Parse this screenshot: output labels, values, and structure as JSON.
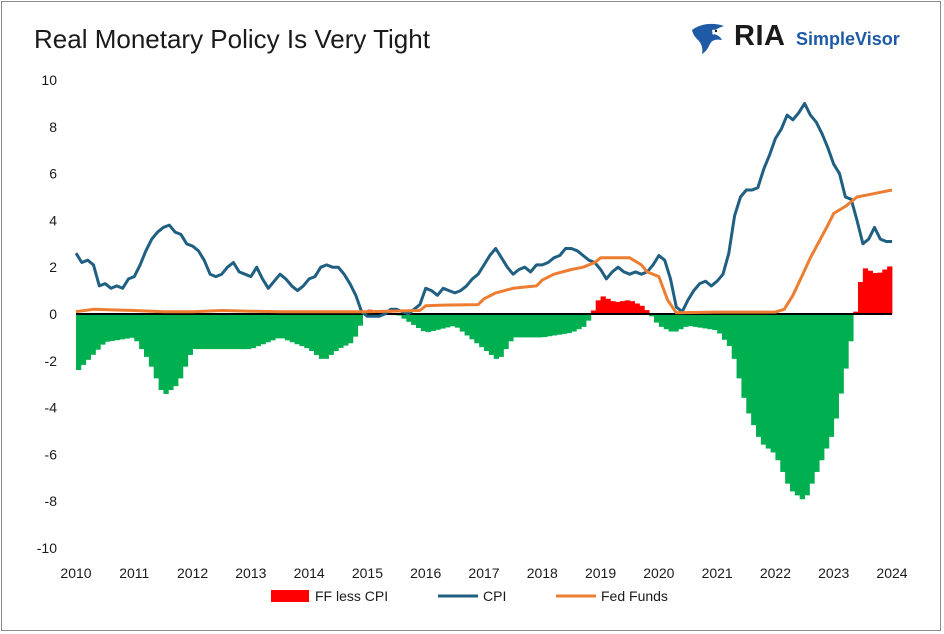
{
  "title": "Real Monetary Policy Is Very Tight",
  "logo": {
    "primary": "RIA",
    "secondary": "SimpleVisor",
    "icon": "eagle-icon",
    "primary_color": "#1a1a1a",
    "secondary_color": "#1f5aa6"
  },
  "chart_data": {
    "type": "bar+line",
    "ylim": [
      -10,
      10
    ],
    "y_ticks": [
      10,
      8,
      6,
      4,
      2,
      0,
      -2,
      -4,
      -6,
      -8,
      -10
    ],
    "xlim": [
      2010,
      2024
    ],
    "x_ticks": [
      "2010",
      "2011",
      "2012",
      "2013",
      "2014",
      "2015",
      "2016",
      "2017",
      "2018",
      "2019",
      "2020",
      "2021",
      "2022",
      "2023",
      "2024"
    ],
    "grid": false,
    "legend_position": "bottom",
    "series": [
      {
        "name": "FF less CPI",
        "kind": "bar",
        "color_positive": "#ff0000",
        "color_negative": "#00b050",
        "x": [
          2010,
          2010.5,
          2011,
          2011.25,
          2011.5,
          2011.75,
          2012,
          2012.5,
          2013,
          2013.5,
          2014,
          2014.25,
          2014.5,
          2014.75,
          2015,
          2015.5,
          2016,
          2016.5,
          2017,
          2017.25,
          2017.5,
          2018,
          2018.5,
          2018.75,
          2019,
          2019.25,
          2019.5,
          2019.75,
          2020,
          2020.25,
          2020.5,
          2021,
          2021.25,
          2021.5,
          2021.75,
          2022,
          2022.25,
          2022.5,
          2022.75,
          2023,
          2023.25,
          2023.5,
          2023.75,
          2024
        ],
        "values": [
          -2.5,
          -1.2,
          -1.0,
          -2.0,
          -3.5,
          -3.0,
          -1.5,
          -1.5,
          -1.5,
          -1.0,
          -1.5,
          -2.0,
          -1.5,
          -1.2,
          0.2,
          0.0,
          -0.8,
          -0.5,
          -1.5,
          -2.0,
          -1.0,
          -1.0,
          -0.8,
          -0.5,
          0.8,
          0.5,
          0.6,
          0.3,
          -0.5,
          -0.8,
          -0.5,
          -0.7,
          -1.5,
          -4.0,
          -5.5,
          -6.0,
          -7.5,
          -8.0,
          -6.5,
          -5.0,
          -1.8,
          2.0,
          1.7,
          2.1
        ]
      },
      {
        "name": "CPI",
        "kind": "line",
        "color": "#1f5f82",
        "x": [
          2010,
          2010.1,
          2010.2,
          2010.3,
          2010.4,
          2010.5,
          2010.6,
          2010.7,
          2010.8,
          2010.9,
          2011,
          2011.1,
          2011.2,
          2011.3,
          2011.4,
          2011.5,
          2011.6,
          2011.7,
          2011.8,
          2011.9,
          2012,
          2012.1,
          2012.2,
          2012.3,
          2012.4,
          2012.5,
          2012.6,
          2012.7,
          2012.8,
          2012.9,
          2013,
          2013.1,
          2013.2,
          2013.3,
          2013.4,
          2013.5,
          2013.6,
          2013.7,
          2013.8,
          2013.9,
          2014,
          2014.1,
          2014.2,
          2014.3,
          2014.4,
          2014.5,
          2014.6,
          2014.7,
          2014.8,
          2014.9,
          2015,
          2015.1,
          2015.2,
          2015.3,
          2015.4,
          2015.5,
          2015.6,
          2015.7,
          2015.8,
          2015.9,
          2016,
          2016.1,
          2016.2,
          2016.3,
          2016.4,
          2016.5,
          2016.6,
          2016.7,
          2016.8,
          2016.9,
          2017,
          2017.1,
          2017.2,
          2017.3,
          2017.4,
          2017.5,
          2017.6,
          2017.7,
          2017.8,
          2017.9,
          2018,
          2018.1,
          2018.2,
          2018.3,
          2018.4,
          2018.5,
          2018.6,
          2018.7,
          2018.8,
          2018.9,
          2019,
          2019.1,
          2019.2,
          2019.3,
          2019.4,
          2019.5,
          2019.6,
          2019.7,
          2019.8,
          2019.9,
          2020,
          2020.1,
          2020.2,
          2020.3,
          2020.4,
          2020.5,
          2020.6,
          2020.7,
          2020.8,
          2020.9,
          2021,
          2021.1,
          2021.2,
          2021.3,
          2021.4,
          2021.5,
          2021.6,
          2021.7,
          2021.8,
          2021.9,
          2022,
          2022.1,
          2022.2,
          2022.3,
          2022.4,
          2022.5,
          2022.6,
          2022.7,
          2022.8,
          2022.9,
          2023,
          2023.1,
          2023.2,
          2023.3,
          2023.4,
          2023.5,
          2023.6,
          2023.7,
          2023.8,
          2023.9,
          2024
        ],
        "values": [
          2.6,
          2.2,
          2.3,
          2.1,
          1.2,
          1.3,
          1.1,
          1.2,
          1.1,
          1.5,
          1.6,
          2.1,
          2.7,
          3.2,
          3.5,
          3.7,
          3.8,
          3.5,
          3.4,
          3.0,
          2.9,
          2.7,
          2.3,
          1.7,
          1.6,
          1.7,
          2.0,
          2.2,
          1.8,
          1.7,
          1.6,
          2.0,
          1.5,
          1.1,
          1.4,
          1.7,
          1.5,
          1.2,
          1.0,
          1.2,
          1.5,
          1.6,
          2.0,
          2.1,
          2.0,
          2.0,
          1.7,
          1.3,
          0.8,
          0.1,
          -0.1,
          -0.1,
          -0.1,
          0.0,
          0.2,
          0.2,
          0.1,
          0.0,
          0.2,
          0.4,
          1.1,
          1.0,
          0.8,
          1.1,
          1.0,
          0.9,
          1.0,
          1.2,
          1.5,
          1.7,
          2.1,
          2.5,
          2.8,
          2.4,
          2.0,
          1.7,
          1.9,
          2.0,
          1.8,
          2.1,
          2.1,
          2.2,
          2.4,
          2.5,
          2.8,
          2.8,
          2.7,
          2.5,
          2.3,
          2.2,
          1.9,
          1.5,
          1.8,
          2.0,
          1.8,
          1.7,
          1.8,
          1.7,
          1.8,
          2.1,
          2.5,
          2.3,
          1.5,
          0.3,
          0.1,
          0.6,
          1.0,
          1.3,
          1.4,
          1.2,
          1.4,
          1.7,
          2.6,
          4.2,
          5.0,
          5.3,
          5.3,
          5.4,
          6.2,
          6.8,
          7.5,
          7.9,
          8.5,
          8.3,
          8.6,
          9.0,
          8.5,
          8.2,
          7.7,
          7.1,
          6.4,
          6.0,
          5.0,
          4.9,
          4.0,
          3.0,
          3.2,
          3.7,
          3.2,
          3.1,
          3.1
        ]
      },
      {
        "name": "Fed Funds",
        "kind": "line",
        "color": "#ed7d31",
        "x": [
          2010,
          2010.3,
          2011,
          2011.5,
          2012,
          2012.5,
          2013,
          2013.5,
          2014,
          2014.5,
          2015,
          2015.9,
          2016,
          2016.3,
          2016.9,
          2017,
          2017.2,
          2017.5,
          2017.9,
          2018,
          2018.2,
          2018.5,
          2018.7,
          2018.9,
          2019,
          2019.2,
          2019.5,
          2019.7,
          2019.8,
          2020,
          2020.15,
          2020.3,
          2021,
          2021.5,
          2022,
          2022.15,
          2022.3,
          2022.45,
          2022.6,
          2022.75,
          2022.9,
          2023,
          2023.2,
          2023.4,
          2023.6,
          2024
        ],
        "values": [
          0.1,
          0.2,
          0.15,
          0.1,
          0.1,
          0.15,
          0.12,
          0.1,
          0.1,
          0.1,
          0.1,
          0.15,
          0.35,
          0.38,
          0.4,
          0.65,
          0.9,
          1.1,
          1.2,
          1.45,
          1.7,
          1.9,
          2.0,
          2.2,
          2.4,
          2.4,
          2.4,
          2.1,
          1.8,
          1.6,
          0.6,
          0.05,
          0.08,
          0.08,
          0.08,
          0.2,
          0.8,
          1.6,
          2.4,
          3.1,
          3.8,
          4.3,
          4.6,
          5.0,
          5.1,
          5.3
        ]
      }
    ]
  }
}
